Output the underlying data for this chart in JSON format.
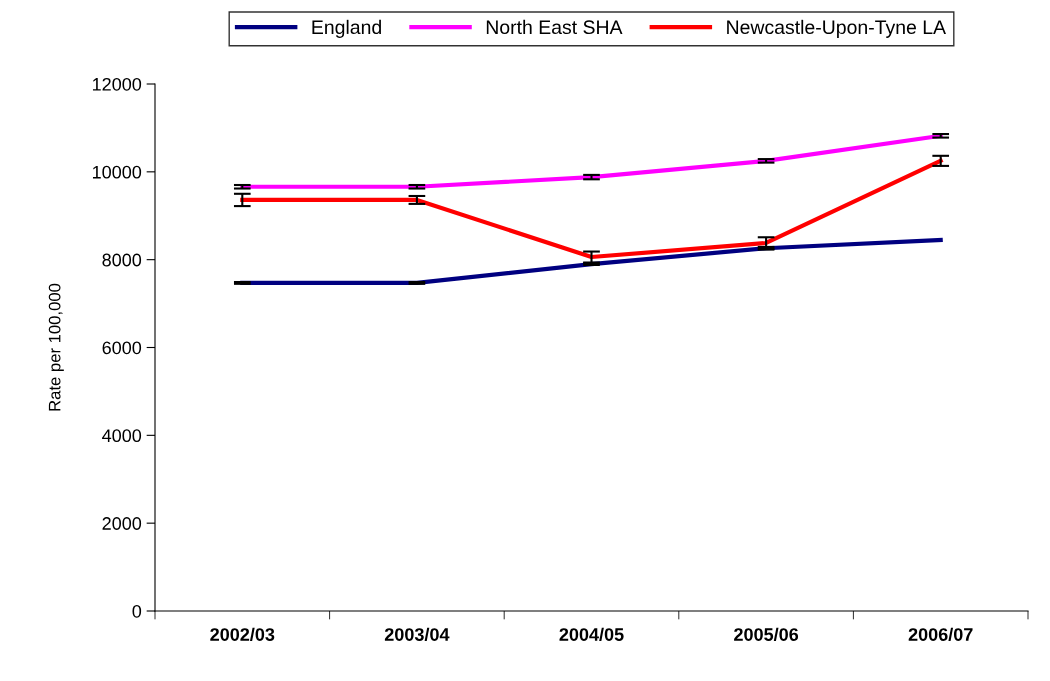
{
  "chart_data": {
    "type": "line",
    "ylabel": "Rate per 100,000",
    "categories": [
      "2002/03",
      "2003/04",
      "2004/05",
      "2005/06",
      "2006/07"
    ],
    "series": [
      {
        "name": "England",
        "color": "#000080",
        "values": [
          7470,
          7470,
          7900,
          8260,
          8450
        ],
        "errors": [
          20,
          20,
          20,
          30,
          null
        ]
      },
      {
        "name": "North East SHA",
        "color": "#ff00ff",
        "values": [
          9660,
          9660,
          9880,
          10250,
          10820
        ],
        "errors": [
          40,
          40,
          50,
          40,
          40
        ]
      },
      {
        "name": "Newcastle-Upon-Tyne LA",
        "color": "#ff0000",
        "values": [
          9360,
          9360,
          8060,
          8380,
          10250
        ],
        "errors": [
          140,
          90,
          125,
          130,
          115
        ]
      }
    ],
    "ylim": [
      0,
      12000
    ],
    "yticks": [
      0,
      2000,
      4000,
      6000,
      8000,
      10000,
      12000
    ],
    "grid": false,
    "legend": "top",
    "marker": "none",
    "line_style": "solid"
  }
}
